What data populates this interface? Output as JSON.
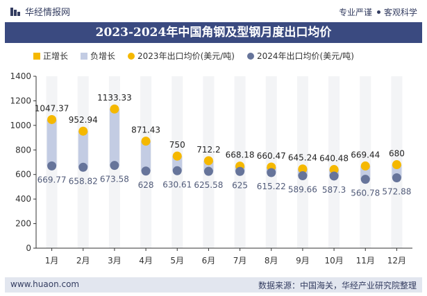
{
  "header": {
    "brand": "华经情报网",
    "tagline_left": "专业严谨",
    "tagline_right": "客观科学"
  },
  "chart_data": {
    "type": "line",
    "title": "2023-2024年中国角钢及型钢月度出口均价",
    "categories": [
      "1月",
      "2月",
      "3月",
      "4月",
      "5月",
      "6月",
      "7月",
      "8月",
      "9月",
      "10月",
      "11月",
      "12月"
    ],
    "series": [
      {
        "name": "2023年出口均价(美元/吨)",
        "color": "#f5b800",
        "values": [
          1047.37,
          952.94,
          1133.33,
          871.43,
          750,
          712.2,
          668.18,
          660.47,
          645.24,
          640.48,
          669.44,
          680
        ]
      },
      {
        "name": "2024年出口均价(美元/吨)",
        "color": "#66749a",
        "values": [
          669.77,
          658.82,
          673.58,
          628,
          630.61,
          625.58,
          625,
          615.22,
          589.66,
          587.3,
          560.78,
          572.88
        ]
      }
    ],
    "change_legend": [
      {
        "name": "正增长",
        "color": "#f5b800"
      },
      {
        "name": "负增长",
        "color": "#c3cce3"
      }
    ],
    "ylim": [
      0,
      1400
    ],
    "yticks": [
      0,
      200,
      400,
      600,
      800,
      1000,
      1200,
      1400
    ],
    "legend_position": "top",
    "grid": false
  },
  "footer": {
    "website": "www.huaon.com",
    "source": "数据来源：中国海关，华经产业研究院整理"
  }
}
